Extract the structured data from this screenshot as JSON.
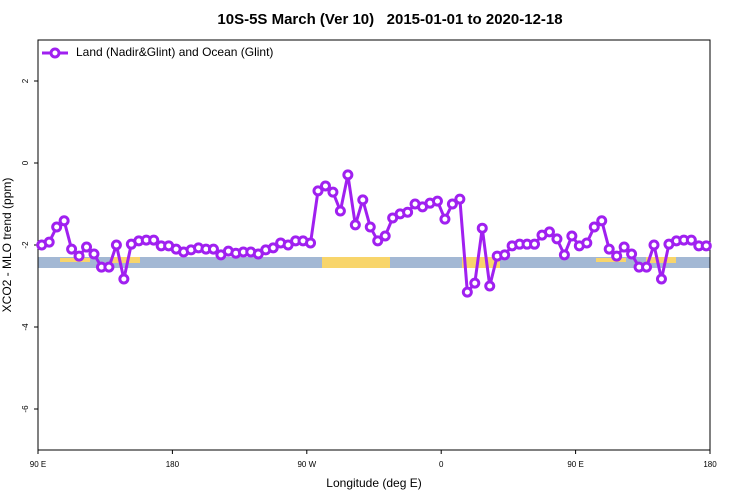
{
  "chart_data": {
    "type": "line",
    "title": "10S-5S March (Ver 10)   2015-01-01 to 2020-12-18",
    "xlabel": "Longitude (deg E)",
    "ylabel": "XCO2 - MLO trend (ppm)",
    "xlim": [
      90,
      540
    ],
    "ylim": [
      -7,
      3
    ],
    "xticks": [
      {
        "value": 90,
        "label": "90 E"
      },
      180,
      {
        "value": 270,
        "label": "90 W"
      },
      {
        "value": 360,
        "label": "0"
      },
      {
        "value": 450,
        "label": "90 E"
      },
      {
        "value": 540,
        "label": "180"
      }
    ],
    "yticks": [
      -6,
      -4,
      -2,
      0,
      2
    ],
    "legend": "topleft",
    "x": [
      92.5,
      97.5,
      102.5,
      107.5,
      112.5,
      117.5,
      122.5,
      127.5,
      132.5,
      137.5,
      142.5,
      147.5,
      152.5,
      157.5,
      162.5,
      167.5,
      172.5,
      177.5,
      182.5,
      187.5,
      192.5,
      197.5,
      202.5,
      207.5,
      212.5,
      217.5,
      222.5,
      227.5,
      232.5,
      237.5,
      242.5,
      247.5,
      252.5,
      257.5,
      262.5,
      267.5,
      272.5,
      277.5,
      282.5,
      287.5,
      292.5,
      297.5,
      302.5,
      307.5,
      312.5,
      317.5,
      322.5,
      327.5,
      332.5,
      337.5,
      342.5,
      347.5,
      352.5,
      357.5,
      362.5,
      367.5,
      372.5,
      377.5,
      382.5,
      387.5,
      392.5,
      397.5,
      402.5,
      407.5,
      412.5,
      417.5,
      422.5,
      427.5,
      432.5,
      437.5,
      442.5,
      447.5,
      452.5,
      457.5,
      462.5,
      467.5,
      472.5,
      477.5,
      482.5,
      487.5,
      492.5,
      497.5,
      502.5,
      507.5,
      512.5,
      517.5,
      522.5,
      527.5,
      532.5,
      537.5
    ],
    "series": [
      {
        "name": "Land (Nadir&Glint) and Ocean (Glint)",
        "color": "#a020f0",
        "values": [
          -2.0,
          -1.93,
          -1.56,
          -1.41,
          -2.1,
          -2.27,
          -2.05,
          -2.22,
          -2.54,
          -2.54,
          -2.0,
          -2.83,
          -1.98,
          -1.9,
          -1.88,
          -1.88,
          -2.02,
          -2.02,
          -2.1,
          -2.17,
          -2.12,
          -2.07,
          -2.1,
          -2.1,
          -2.24,
          -2.15,
          -2.2,
          -2.17,
          -2.17,
          -2.22,
          -2.12,
          -2.07,
          -1.95,
          -2.0,
          -1.9,
          -1.9,
          -1.95,
          -0.68,
          -0.56,
          -0.71,
          -1.17,
          -0.29,
          -1.51,
          -0.9,
          -1.56,
          -1.9,
          -1.78,
          -1.34,
          -1.24,
          -1.2,
          -1.0,
          -1.07,
          -0.98,
          -0.93,
          -1.37,
          -1.0,
          -0.88,
          -3.15,
          -2.93,
          -1.59,
          -3.0,
          -2.27,
          -2.24,
          -2.02,
          -1.98,
          -1.98,
          -1.98,
          -1.76,
          -1.68,
          -1.85,
          -2.24,
          -1.78,
          -2.02,
          -1.95,
          -1.56,
          -1.41,
          -2.1,
          -2.27,
          -2.05,
          -2.22,
          -2.54,
          -2.54,
          -2.0,
          -2.83,
          -1.98,
          -1.9,
          -1.88,
          -1.88,
          -2.02,
          -2.02
        ]
      }
    ]
  }
}
